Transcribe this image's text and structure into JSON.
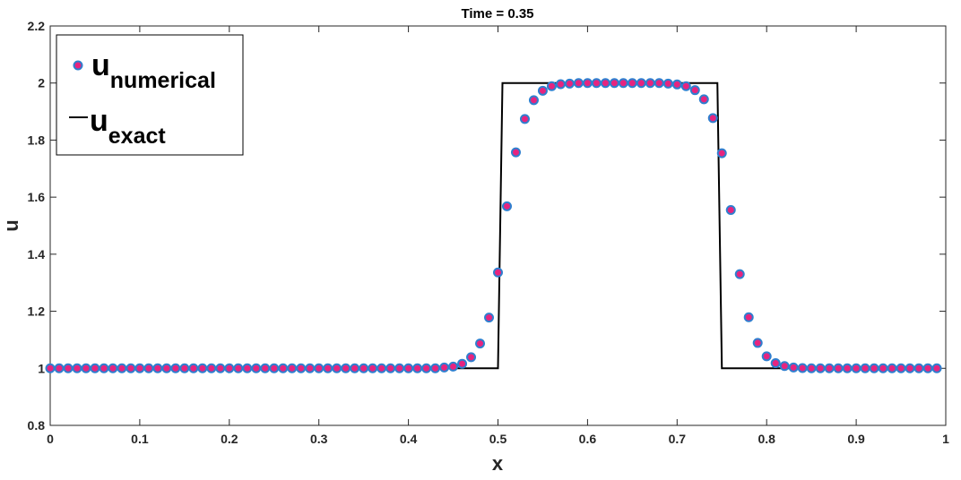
{
  "chart_data": {
    "type": "line",
    "title": "Time = 0.35",
    "xlabel": "x",
    "ylabel": "u",
    "xlim": [
      0,
      1
    ],
    "ylim": [
      0.8,
      2.2
    ],
    "xticks": [
      "0",
      "0.1",
      "0.2",
      "0.3",
      "0.4",
      "0.5",
      "0.6",
      "0.7",
      "0.8",
      "0.9",
      "1"
    ],
    "yticks": [
      "0.8",
      "1",
      "1.2",
      "1.4",
      "1.6",
      "1.8",
      "2",
      "2.2"
    ],
    "grid": false,
    "legend_position": "top-left",
    "series": [
      {
        "name": "u",
        "name_subscript": "numerical",
        "style": "markers",
        "marker_fill": "#e6247f",
        "marker_edge": "#2f7fcf",
        "x": [
          0,
          0.01,
          0.02,
          0.03,
          0.04,
          0.05,
          0.06,
          0.07,
          0.08,
          0.09,
          0.1,
          0.11,
          0.12,
          0.13,
          0.14,
          0.15,
          0.16,
          0.17,
          0.18,
          0.19,
          0.2,
          0.21,
          0.22,
          0.23,
          0.24,
          0.25,
          0.26,
          0.27,
          0.28,
          0.29,
          0.3,
          0.31,
          0.32,
          0.33,
          0.34,
          0.35,
          0.36,
          0.37,
          0.38,
          0.39,
          0.4,
          0.41,
          0.42,
          0.43,
          0.44,
          0.45,
          0.46,
          0.47,
          0.48,
          0.49,
          0.5,
          0.51,
          0.52,
          0.53,
          0.54,
          0.55,
          0.56,
          0.57,
          0.58,
          0.59,
          0.6,
          0.61,
          0.62,
          0.63,
          0.64,
          0.65,
          0.66,
          0.67,
          0.68,
          0.69,
          0.7,
          0.71,
          0.72,
          0.73,
          0.74,
          0.75,
          0.76,
          0.77,
          0.78,
          0.79,
          0.8,
          0.81,
          0.82,
          0.83,
          0.84,
          0.85,
          0.86,
          0.87,
          0.88,
          0.89,
          0.9,
          0.91,
          0.92,
          0.93,
          0.94,
          0.95,
          0.96,
          0.97,
          0.98,
          0.99
        ],
        "y": [
          1,
          1,
          1,
          1,
          1,
          1,
          1,
          1,
          1,
          1,
          1,
          1,
          1,
          1,
          1,
          1,
          1,
          1,
          1,
          1,
          1,
          1,
          1,
          1,
          1,
          1,
          1,
          1,
          1,
          1,
          1,
          1,
          1,
          1,
          1,
          1,
          1,
          1,
          1,
          1,
          1,
          1,
          1,
          1,
          1.003,
          1.006,
          1.016,
          1.039,
          1.087,
          1.178,
          1.336,
          1.568,
          1.757,
          1.874,
          1.94,
          1.973,
          1.989,
          1.996,
          1.998,
          2,
          2,
          2,
          2,
          2,
          2,
          2,
          2,
          2,
          2,
          1.998,
          1.995,
          1.989,
          1.975,
          1.943,
          1.877,
          1.754,
          1.555,
          1.33,
          1.179,
          1.089,
          1.042,
          1.018,
          1.008,
          1.003,
          1.001,
          1,
          1,
          1,
          1,
          1,
          1,
          1,
          1,
          1,
          1,
          1,
          1,
          1,
          1,
          1
        ]
      },
      {
        "name": "u",
        "name_subscript": "exact",
        "style": "line",
        "color": "#000000",
        "x": [
          0,
          0.5,
          0.505,
          0.745,
          0.75,
          0.99
        ],
        "y": [
          1,
          1,
          2,
          2,
          1,
          1
        ]
      }
    ]
  },
  "colors": {
    "axis": "#262626",
    "marker_fill": "#e6247f",
    "marker_edge": "#2f7fcf",
    "line": "#000000"
  }
}
